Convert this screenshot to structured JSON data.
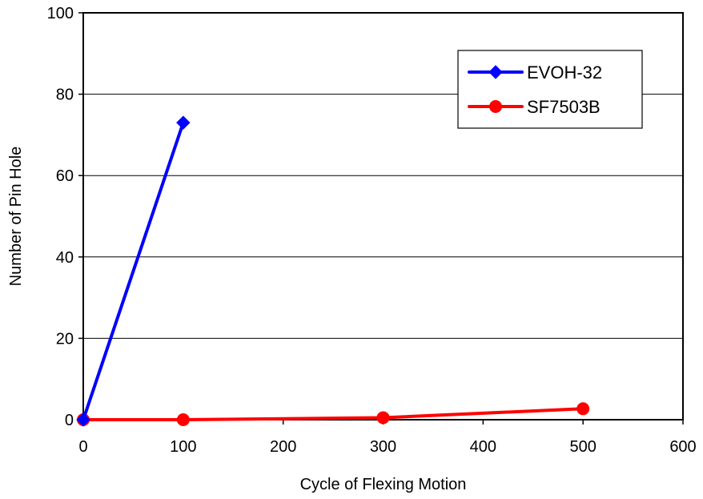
{
  "chart_data": {
    "type": "line",
    "xlabel": "Cycle of Flexing Motion",
    "ylabel": "Number of Pin Hole",
    "xlim": [
      0,
      600
    ],
    "ylim": [
      0,
      100
    ],
    "xticks": [
      "0",
      "100",
      "200",
      "300",
      "400",
      "500",
      "600"
    ],
    "yticks": [
      "0",
      "20",
      "40",
      "60",
      "80",
      "100"
    ],
    "grid": "horizontal",
    "legend_position": "top-right",
    "series": [
      {
        "name": "EVOH-32",
        "color": "#0000ff",
        "marker": "diamond",
        "x": [
          0,
          100
        ],
        "y": [
          0,
          73
        ]
      },
      {
        "name": "SF7503B",
        "color": "#ff0000",
        "marker": "circle",
        "x": [
          0,
          100,
          300,
          500
        ],
        "y": [
          0,
          0,
          0.5,
          2.7
        ]
      }
    ]
  }
}
